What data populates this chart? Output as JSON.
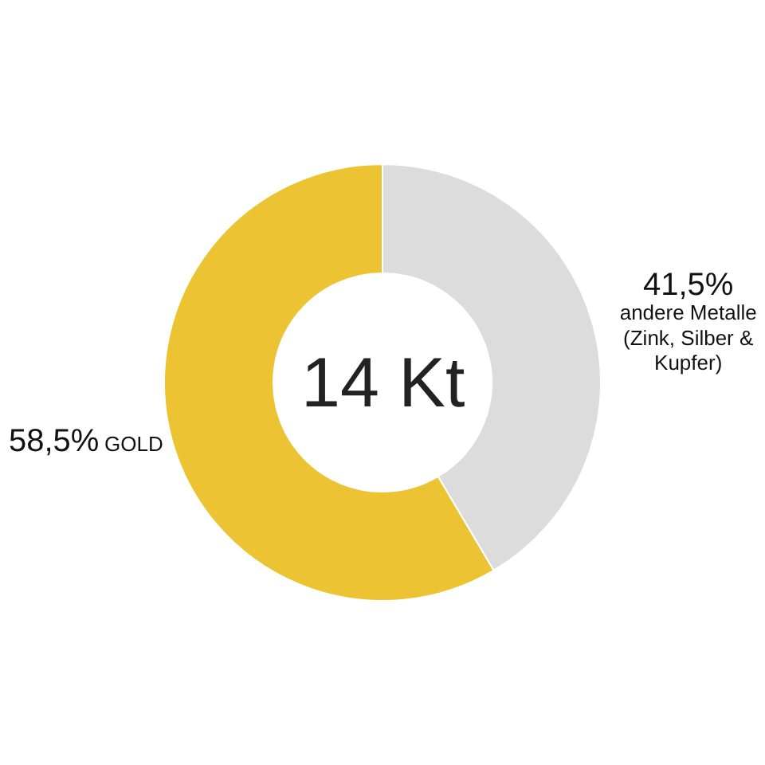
{
  "chart_data": {
    "type": "donut",
    "categories": [
      "andere Metalle (Zink, Silber & Kupfer)",
      "GOLD"
    ],
    "values": [
      41.5,
      58.5
    ],
    "colors": [
      "#dcdcdc",
      "#ecc433"
    ],
    "value_labels": [
      "41,5%",
      "58,5%"
    ],
    "annotations": [
      "14 Kt"
    ],
    "legend": false
  }
}
